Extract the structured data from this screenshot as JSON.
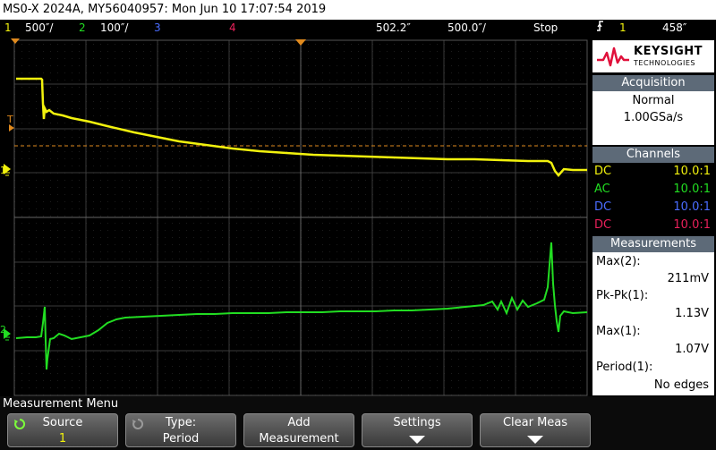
{
  "title_bar": {
    "text": "MS0-X 2024A, MY56040957: Mon Jun 10 17:07:54 2019"
  },
  "status_bar": {
    "ch1_num": "1",
    "ch1_scale": "500″/",
    "ch2_num": "2",
    "ch2_scale": "100″/",
    "ch3_num": "3",
    "ch4_num": "4",
    "delay": "502.2″",
    "timebase": "500.0″/",
    "run_state": "Stop",
    "trigger_icon": "⌀",
    "trigger_source": "1",
    "trigger_level": "458″"
  },
  "colors": {
    "ch1": "#f2f20d",
    "ch2": "#22dd22",
    "ch3": "#4a6cff",
    "ch4": "#e8205a",
    "trigger": "#e08a1e",
    "panel_header": "#5d6a78"
  },
  "side_panel": {
    "brand_line1": "KEYSIGHT",
    "brand_line2": "TECHNOLOGIES",
    "acquisition": {
      "header": "Acquisition",
      "mode": "Normal",
      "rate": "1.00GSa/s"
    },
    "channels": {
      "header": "Channels",
      "rows": [
        {
          "coupling": "DC",
          "probe": "10.0:1"
        },
        {
          "coupling": "AC",
          "probe": "10.0:1"
        },
        {
          "coupling": "DC",
          "probe": "10.0:1"
        },
        {
          "coupling": "DC",
          "probe": "10.0:1"
        }
      ]
    },
    "measurements": {
      "header": "Measurements",
      "items": [
        {
          "label": "Max(2):",
          "value": "211mV"
        },
        {
          "label": "Pk-Pk(1):",
          "value": "1.13V"
        },
        {
          "label": "Max(1):",
          "value": "1.07V"
        },
        {
          "label": "Period(1):",
          "value": "No edges"
        }
      ]
    }
  },
  "screen": {
    "trigger_marker": "T",
    "ch1_marker": "1",
    "ch2_marker": "2"
  },
  "menu": {
    "title": "Measurement Menu",
    "softkeys": [
      {
        "line1": "Source",
        "line2": "1"
      },
      {
        "line1": "Type:",
        "line2": "Period"
      },
      {
        "line1": "Add",
        "line2": "Measurement"
      },
      {
        "line1": "Settings",
        "line2": ""
      },
      {
        "line1": "Clear Meas",
        "line2": ""
      }
    ]
  }
}
